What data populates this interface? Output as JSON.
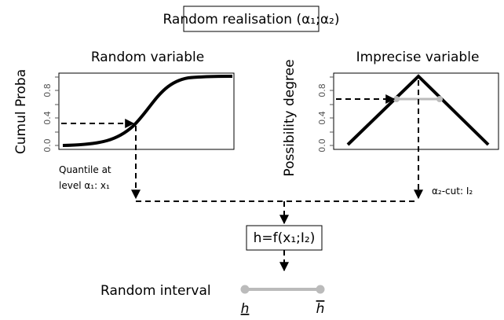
{
  "header": {
    "title": "Random realisation (α₁;α₂)"
  },
  "left_panel": {
    "title": "Random variable",
    "y_label": "Cumul Proba",
    "tick_labels": [
      "0.0",
      "0.4",
      "0.8"
    ],
    "annotation": [
      "Quantile at",
      "level α₁: x₁"
    ]
  },
  "right_panel": {
    "title": "Imprecise variable",
    "y_label": "Possibility degree",
    "tick_labels": [
      "0.0",
      "0.4",
      "0.8"
    ],
    "annotation": "α₂-cut: I₂"
  },
  "function_box": "h=f(x₁;I₂)",
  "interval": {
    "label": "Random interval",
    "lower": "h",
    "upper": "h"
  }
}
